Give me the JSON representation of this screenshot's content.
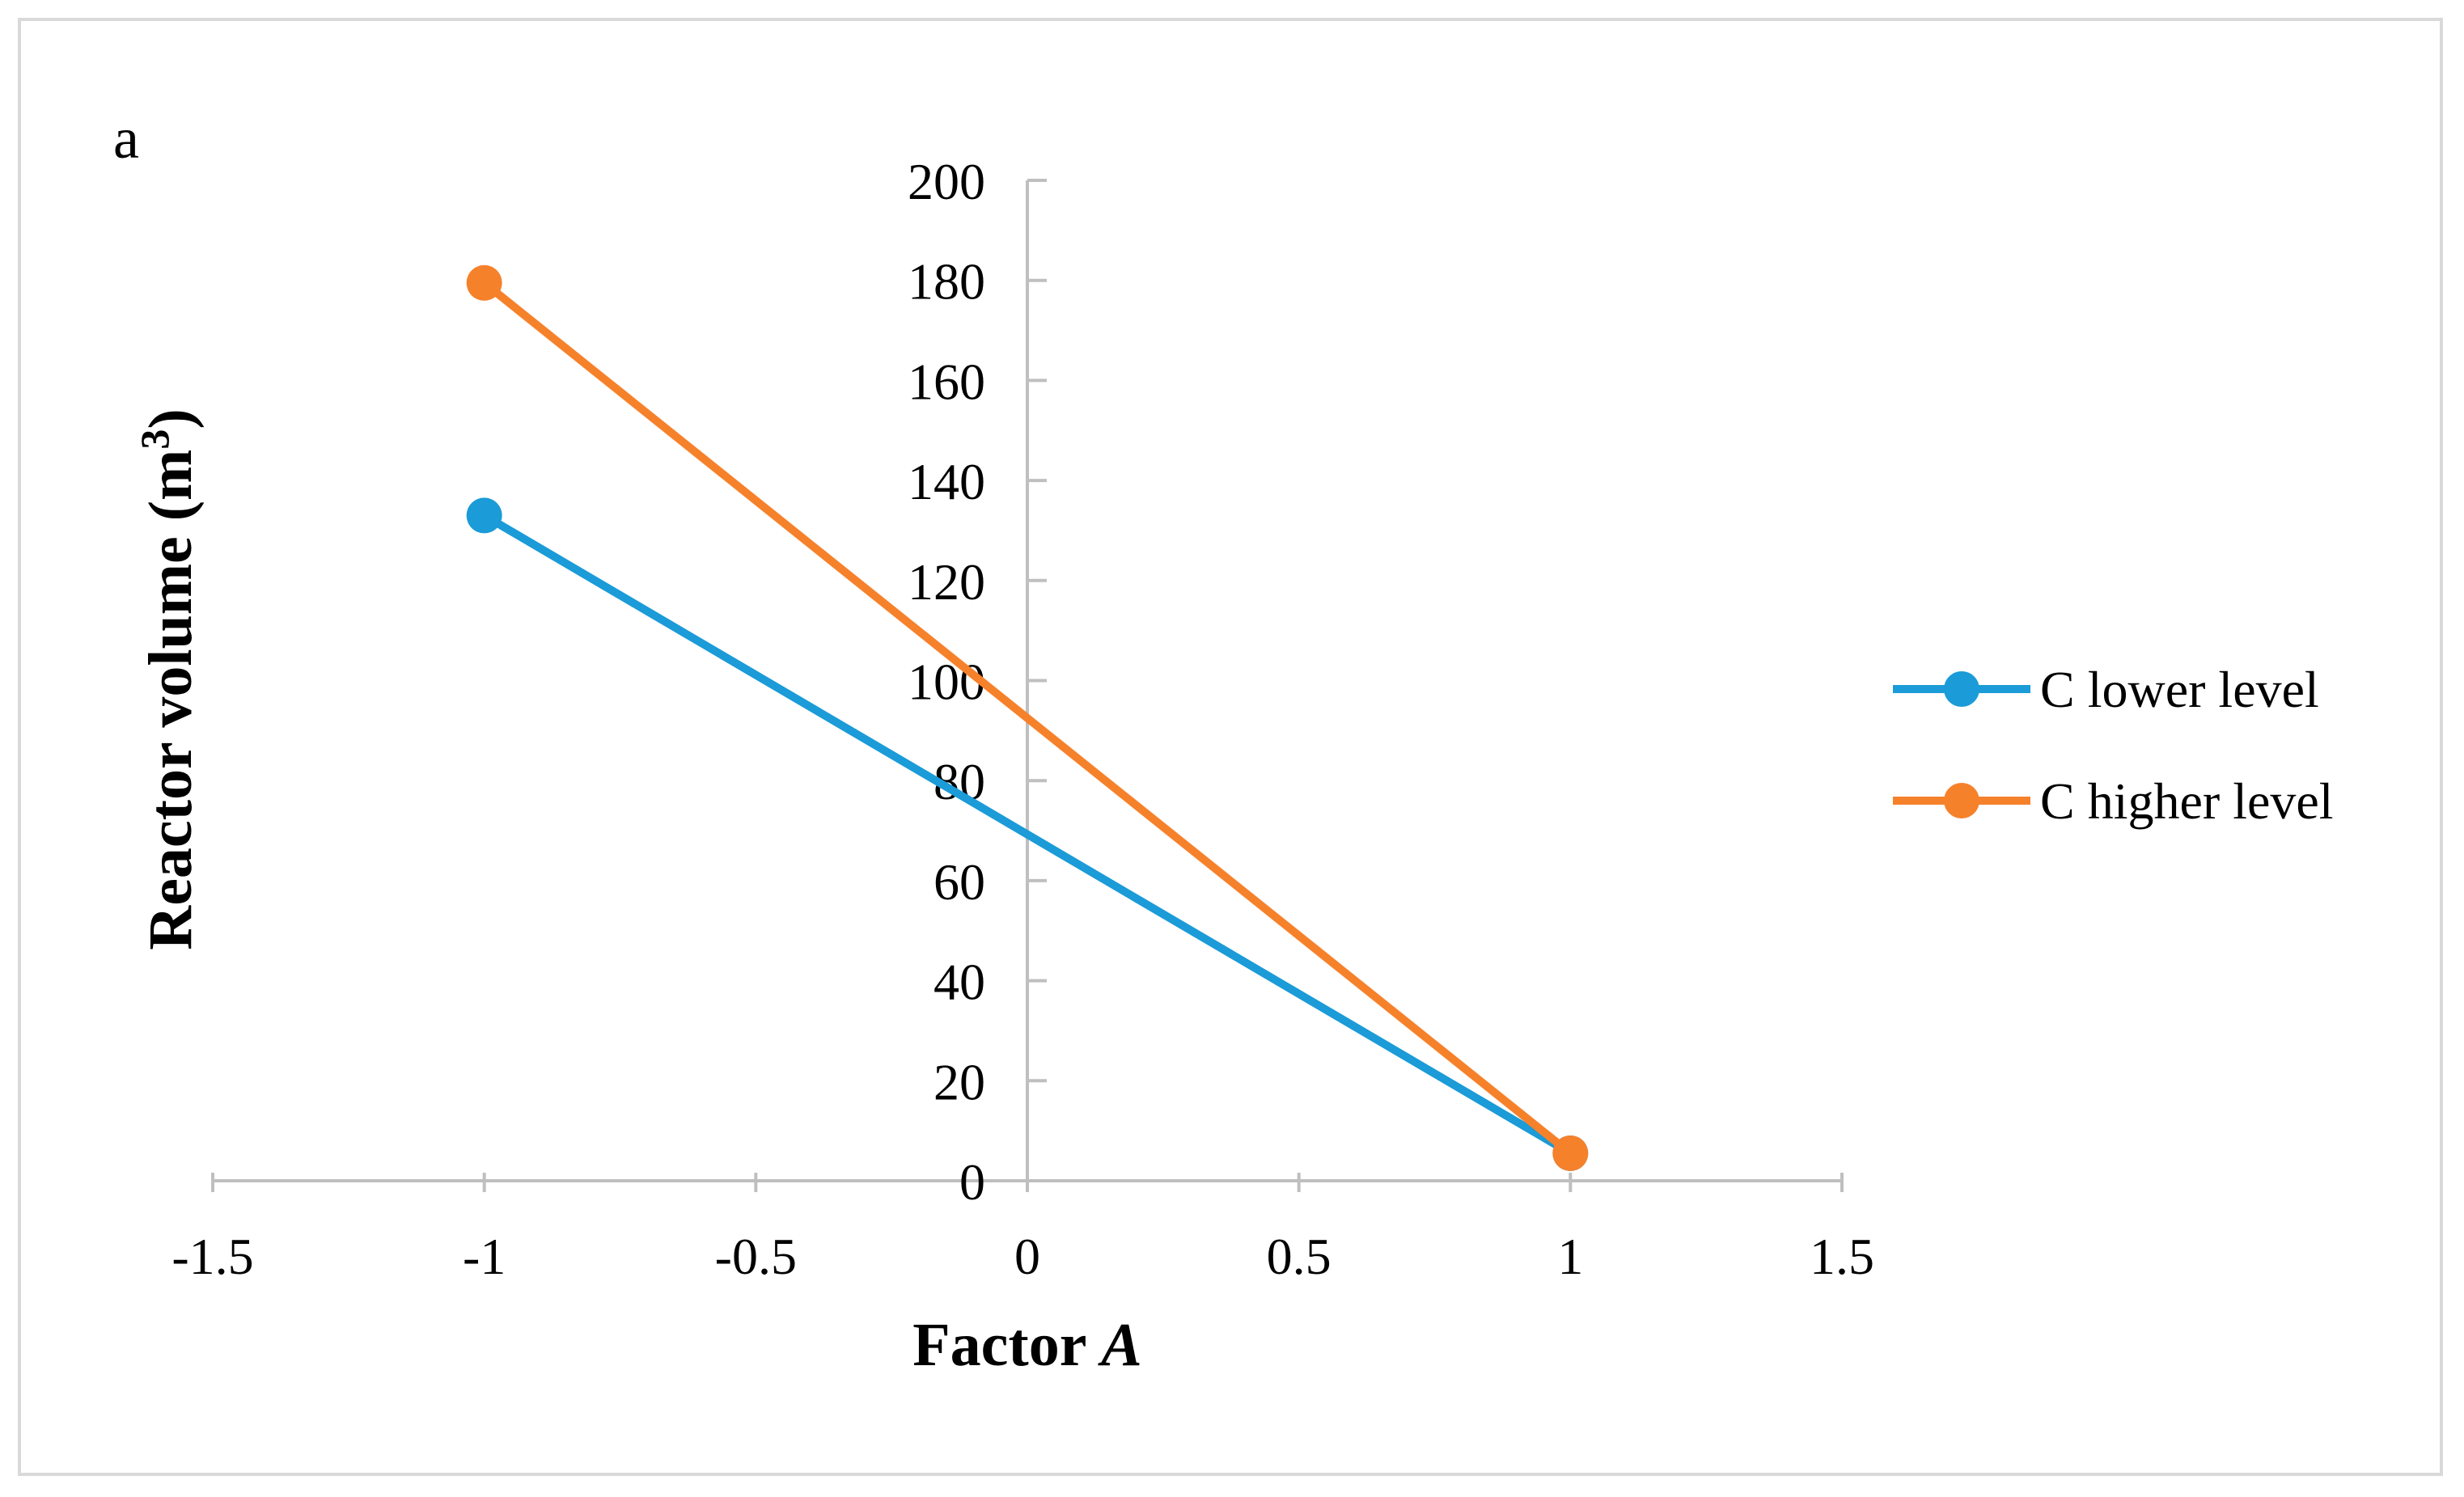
{
  "chart_data": {
    "type": "line",
    "panel_label": "a",
    "title": "",
    "xlabel": "Factor ",
    "xlabel_italic": "A",
    "ylabel": "Reactor volume (m",
    "ylabel_sup": "3",
    "ylabel_close": ")",
    "xlim": [
      -1.5,
      1.5
    ],
    "ylim": [
      0,
      200
    ],
    "xticks": [
      -1.5,
      -1,
      -0.5,
      0,
      0.5,
      1,
      1.5
    ],
    "xtick_labels": [
      "-1.5",
      "-1",
      "-0.5",
      "0",
      "0.5",
      "1",
      "1.5"
    ],
    "yticks": [
      0,
      20,
      40,
      60,
      80,
      100,
      120,
      140,
      160,
      180,
      200
    ],
    "ytick_labels": [
      "0",
      "20",
      "40",
      "60",
      "80",
      "100",
      "120",
      "140",
      "160",
      "180",
      "200"
    ],
    "grid": false,
    "legend_position": "right",
    "series": [
      {
        "name": "C lower level",
        "color": "#1b9bd7",
        "x": [
          -1,
          1
        ],
        "y": [
          133,
          5.5
        ]
      },
      {
        "name": "C higher level",
        "color": "#f6812b",
        "x": [
          -1,
          1
        ],
        "y": [
          179.5,
          5.5
        ]
      }
    ]
  }
}
